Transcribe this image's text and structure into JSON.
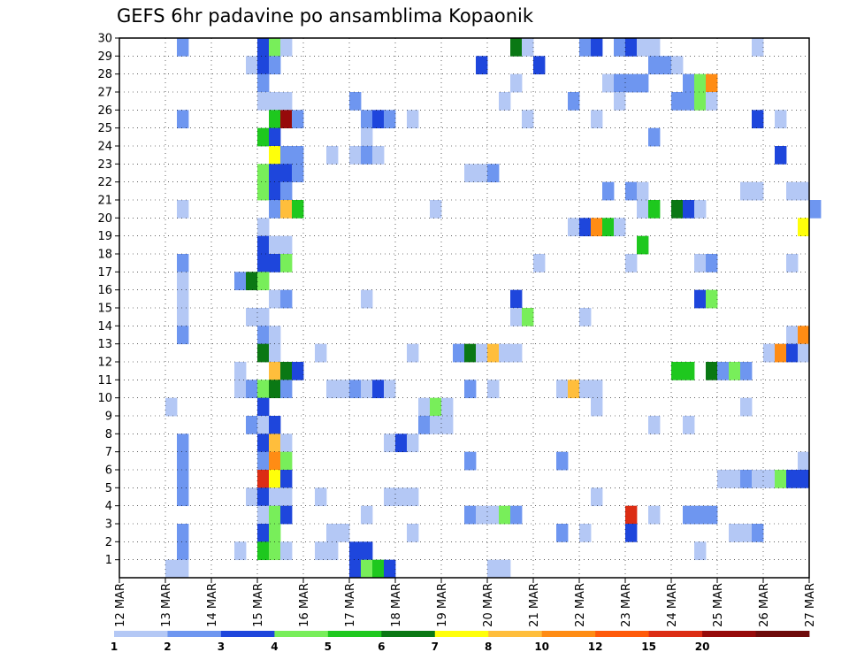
{
  "chart_data": {
    "type": "heatmap",
    "title": "GEFS 6hr padavine po ansamblima Kopaonik",
    "xlabel": "",
    "ylabel": "",
    "x_tick_labels": [
      "12 MAR",
      "13 MAR",
      "14 MAR",
      "15 MAR",
      "16 MAR",
      "17 MAR",
      "18 MAR",
      "19 MAR",
      "20 MAR",
      "21 MAR",
      "22 MAR",
      "23 MAR",
      "24 MAR",
      "25 MAR",
      "26 MAR",
      "27 MAR"
    ],
    "y_tick_labels": [
      "1",
      "2",
      "3",
      "4",
      "5",
      "6",
      "7",
      "8",
      "9",
      "10",
      "11",
      "12",
      "13",
      "14",
      "15",
      "16",
      "17",
      "18",
      "19",
      "20",
      "21",
      "22",
      "23",
      "24",
      "25",
      "26",
      "27",
      "28",
      "29",
      "30"
    ],
    "x_range_days": [
      12,
      27
    ],
    "y_range": [
      0,
      30
    ],
    "grid": true,
    "legend": {
      "position": "bottom",
      "levels": [
        "1",
        "2",
        "3",
        "4",
        "5",
        "6",
        "7",
        "8",
        "10",
        "12",
        "15",
        "20"
      ],
      "colors": [
        "#b4c8f5",
        "#6e96f0",
        "#1e46dc",
        "#78ee5a",
        "#1ec81e",
        "#0a7814",
        "#ffff0a",
        "#ffbe3c",
        "#ff8c14",
        "#ff5a0a",
        "#dc2d14",
        "#960a0a",
        "#6e0a0a"
      ]
    },
    "cell_value_units": "mm, color class index (1 = 1-2, 2 = 2-3, 3 = 3-4, 4 = 4-5, 5 = 5-6, 6 = 6-7, 7 = 7-8, 8 = 8-10, 9 = 10-12, 10 = 12-15, 11 = 15-20, 12 = >20)",
    "cells": [
      {
        "member": 30,
        "entries": [
          [
            13.25,
            2
          ],
          [
            15.0,
            3
          ],
          [
            15.25,
            4
          ],
          [
            15.5,
            1
          ],
          [
            20.5,
            6
          ],
          [
            20.75,
            1
          ],
          [
            22.0,
            2
          ],
          [
            22.25,
            3
          ],
          [
            22.75,
            2
          ],
          [
            23.0,
            3
          ],
          [
            23.25,
            1
          ],
          [
            23.5,
            1
          ],
          [
            25.75,
            1
          ]
        ]
      },
      {
        "member": 29,
        "entries": [
          [
            14.75,
            1
          ],
          [
            15.0,
            3
          ],
          [
            15.25,
            2
          ],
          [
            19.75,
            3
          ],
          [
            21.0,
            3
          ],
          [
            23.5,
            2
          ],
          [
            23.75,
            2
          ],
          [
            24.0,
            1
          ]
        ]
      },
      {
        "member": 28,
        "entries": [
          [
            15.0,
            2
          ],
          [
            20.5,
            1
          ],
          [
            22.5,
            1
          ],
          [
            22.75,
            2
          ],
          [
            23.0,
            2
          ],
          [
            23.25,
            2
          ],
          [
            24.25,
            2
          ],
          [
            24.5,
            4
          ],
          [
            24.75,
            9
          ]
        ]
      },
      {
        "member": 27,
        "entries": [
          [
            15.0,
            1
          ],
          [
            15.25,
            1
          ],
          [
            15.5,
            1
          ],
          [
            17.0,
            2
          ],
          [
            20.25,
            1
          ],
          [
            21.75,
            2
          ],
          [
            22.75,
            1
          ],
          [
            24.0,
            2
          ],
          [
            24.25,
            2
          ],
          [
            24.5,
            4
          ],
          [
            24.75,
            1
          ]
        ]
      },
      {
        "member": 26,
        "entries": [
          [
            13.25,
            2
          ],
          [
            15.25,
            5
          ],
          [
            15.5,
            12
          ],
          [
            15.75,
            2
          ],
          [
            17.25,
            2
          ],
          [
            17.5,
            3
          ],
          [
            17.75,
            2
          ],
          [
            18.25,
            1
          ],
          [
            20.75,
            1
          ],
          [
            22.25,
            1
          ],
          [
            25.75,
            3
          ],
          [
            26.25,
            1
          ]
        ]
      },
      {
        "member": 25,
        "entries": [
          [
            15.0,
            5
          ],
          [
            15.25,
            3
          ],
          [
            17.25,
            1
          ],
          [
            23.5,
            2
          ]
        ]
      },
      {
        "member": 24,
        "entries": [
          [
            15.25,
            7
          ],
          [
            15.5,
            2
          ],
          [
            15.75,
            2
          ],
          [
            16.5,
            1
          ],
          [
            17.0,
            1
          ],
          [
            17.25,
            2
          ],
          [
            17.5,
            1
          ],
          [
            26.25,
            3
          ]
        ]
      },
      {
        "member": 23,
        "entries": [
          [
            15.0,
            4
          ],
          [
            15.25,
            3
          ],
          [
            15.5,
            3
          ],
          [
            15.75,
            2
          ],
          [
            19.5,
            1
          ],
          [
            19.75,
            1
          ],
          [
            20.0,
            2
          ]
        ]
      },
      {
        "member": 22,
        "entries": [
          [
            15.0,
            4
          ],
          [
            15.25,
            3
          ],
          [
            15.5,
            2
          ],
          [
            22.5,
            2
          ],
          [
            23.0,
            2
          ],
          [
            23.25,
            1
          ],
          [
            25.5,
            1
          ],
          [
            25.75,
            1
          ],
          [
            26.5,
            1
          ],
          [
            26.75,
            1
          ]
        ]
      },
      {
        "member": 21,
        "entries": [
          [
            13.25,
            1
          ],
          [
            15.25,
            2
          ],
          [
            15.5,
            8
          ],
          [
            15.75,
            5
          ],
          [
            18.75,
            1
          ],
          [
            23.25,
            1
          ],
          [
            23.5,
            5
          ],
          [
            24.0,
            6
          ],
          [
            24.25,
            3
          ],
          [
            24.5,
            1
          ],
          [
            27.0,
            2
          ]
        ]
      },
      {
        "member": 20,
        "entries": [
          [
            15.0,
            1
          ],
          [
            21.75,
            1
          ],
          [
            22.0,
            3
          ],
          [
            22.25,
            9
          ],
          [
            22.5,
            5
          ],
          [
            22.75,
            1
          ],
          [
            26.75,
            7
          ]
        ]
      },
      {
        "member": 19,
        "entries": [
          [
            15.0,
            3
          ],
          [
            15.25,
            1
          ],
          [
            15.5,
            1
          ],
          [
            23.25,
            5
          ]
        ]
      },
      {
        "member": 18,
        "entries": [
          [
            13.25,
            2
          ],
          [
            15.0,
            3
          ],
          [
            15.25,
            3
          ],
          [
            15.5,
            4
          ],
          [
            21.0,
            1
          ],
          [
            23.0,
            1
          ],
          [
            24.5,
            1
          ],
          [
            24.75,
            2
          ],
          [
            26.5,
            1
          ]
        ]
      },
      {
        "member": 17,
        "entries": [
          [
            13.25,
            1
          ],
          [
            14.5,
            2
          ],
          [
            14.75,
            6
          ],
          [
            15.0,
            4
          ]
        ]
      },
      {
        "member": 16,
        "entries": [
          [
            13.25,
            1
          ],
          [
            15.25,
            1
          ],
          [
            15.5,
            2
          ],
          [
            17.25,
            1
          ],
          [
            20.5,
            3
          ],
          [
            24.5,
            3
          ],
          [
            24.75,
            4
          ]
        ]
      },
      {
        "member": 15,
        "entries": [
          [
            13.25,
            1
          ],
          [
            14.75,
            1
          ],
          [
            15.0,
            1
          ],
          [
            20.5,
            1
          ],
          [
            20.75,
            4
          ],
          [
            22.0,
            1
          ]
        ]
      },
      {
        "member": 14,
        "entries": [
          [
            13.25,
            2
          ],
          [
            15.0,
            2
          ],
          [
            15.25,
            1
          ],
          [
            26.5,
            1
          ],
          [
            26.75,
            9
          ]
        ]
      },
      {
        "member": 13,
        "entries": [
          [
            15.0,
            6
          ],
          [
            15.25,
            1
          ],
          [
            16.25,
            1
          ],
          [
            18.25,
            1
          ],
          [
            19.25,
            2
          ],
          [
            19.5,
            6
          ],
          [
            19.75,
            1
          ],
          [
            20.0,
            8
          ],
          [
            20.25,
            1
          ],
          [
            20.5,
            1
          ],
          [
            26.0,
            1
          ],
          [
            26.25,
            9
          ],
          [
            26.5,
            3
          ],
          [
            26.75,
            1
          ]
        ]
      },
      {
        "member": 12,
        "entries": [
          [
            14.5,
            1
          ],
          [
            15.25,
            8
          ],
          [
            15.5,
            6
          ],
          [
            15.75,
            3
          ],
          [
            24.0,
            5
          ],
          [
            24.25,
            5
          ],
          [
            24.75,
            6
          ],
          [
            25.0,
            2
          ],
          [
            25.25,
            4
          ],
          [
            25.5,
            2
          ]
        ]
      },
      {
        "member": 11,
        "entries": [
          [
            14.5,
            1
          ],
          [
            14.75,
            2
          ],
          [
            15.0,
            4
          ],
          [
            15.25,
            6
          ],
          [
            15.5,
            2
          ],
          [
            16.5,
            1
          ],
          [
            16.75,
            1
          ],
          [
            17.0,
            2
          ],
          [
            17.25,
            1
          ],
          [
            17.5,
            3
          ],
          [
            17.75,
            1
          ],
          [
            19.5,
            2
          ],
          [
            20.0,
            1
          ],
          [
            21.5,
            1
          ],
          [
            21.75,
            8
          ],
          [
            22.0,
            1
          ],
          [
            22.25,
            1
          ]
        ]
      },
      {
        "member": 10,
        "entries": [
          [
            13.0,
            1
          ],
          [
            15.0,
            3
          ],
          [
            18.5,
            1
          ],
          [
            18.75,
            4
          ],
          [
            19.0,
            1
          ],
          [
            22.25,
            1
          ],
          [
            25.5,
            1
          ]
        ]
      },
      {
        "member": 9,
        "entries": [
          [
            14.75,
            2
          ],
          [
            15.0,
            1
          ],
          [
            15.25,
            3
          ],
          [
            18.5,
            2
          ],
          [
            18.75,
            1
          ],
          [
            19.0,
            1
          ],
          [
            23.5,
            1
          ],
          [
            24.25,
            1
          ]
        ]
      },
      {
        "member": 8,
        "entries": [
          [
            13.25,
            2
          ],
          [
            15.0,
            3
          ],
          [
            15.25,
            8
          ],
          [
            15.5,
            1
          ],
          [
            17.75,
            1
          ],
          [
            18.0,
            3
          ],
          [
            18.25,
            1
          ]
        ]
      },
      {
        "member": 7,
        "entries": [
          [
            13.25,
            2
          ],
          [
            15.0,
            2
          ],
          [
            15.25,
            9
          ],
          [
            15.5,
            4
          ],
          [
            19.5,
            2
          ],
          [
            21.5,
            2
          ],
          [
            26.75,
            1
          ]
        ]
      },
      {
        "member": 6,
        "entries": [
          [
            13.25,
            2
          ],
          [
            15.0,
            11
          ],
          [
            15.25,
            7
          ],
          [
            15.5,
            3
          ],
          [
            25.0,
            1
          ],
          [
            25.25,
            1
          ],
          [
            25.5,
            2
          ],
          [
            25.75,
            1
          ],
          [
            26.0,
            1
          ],
          [
            26.25,
            4
          ],
          [
            26.5,
            3
          ],
          [
            26.75,
            3
          ]
        ]
      },
      {
        "member": 5,
        "entries": [
          [
            13.25,
            2
          ],
          [
            14.75,
            1
          ],
          [
            15.0,
            3
          ],
          [
            15.25,
            1
          ],
          [
            15.5,
            1
          ],
          [
            16.25,
            1
          ],
          [
            17.75,
            1
          ],
          [
            18.0,
            1
          ],
          [
            18.25,
            1
          ],
          [
            22.25,
            1
          ]
        ]
      },
      {
        "member": 4,
        "entries": [
          [
            15.0,
            1
          ],
          [
            15.25,
            4
          ],
          [
            15.5,
            3
          ],
          [
            17.25,
            1
          ],
          [
            19.5,
            2
          ],
          [
            19.75,
            1
          ],
          [
            20.0,
            1
          ],
          [
            20.25,
            4
          ],
          [
            20.5,
            2
          ],
          [
            23.0,
            11
          ],
          [
            23.5,
            1
          ],
          [
            24.25,
            2
          ],
          [
            24.5,
            2
          ],
          [
            24.75,
            2
          ]
        ]
      },
      {
        "member": 3,
        "entries": [
          [
            13.25,
            2
          ],
          [
            15.0,
            3
          ],
          [
            15.25,
            4
          ],
          [
            16.5,
            1
          ],
          [
            16.75,
            1
          ],
          [
            18.25,
            1
          ],
          [
            21.5,
            2
          ],
          [
            22.0,
            1
          ],
          [
            23.0,
            3
          ],
          [
            25.25,
            1
          ],
          [
            25.5,
            1
          ],
          [
            25.75,
            2
          ]
        ]
      },
      {
        "member": 2,
        "entries": [
          [
            13.25,
            2
          ],
          [
            14.5,
            1
          ],
          [
            15.0,
            5
          ],
          [
            15.25,
            4
          ],
          [
            15.5,
            1
          ],
          [
            16.25,
            1
          ],
          [
            16.5,
            1
          ],
          [
            17.0,
            3
          ],
          [
            17.25,
            3
          ],
          [
            24.5,
            1
          ]
        ]
      },
      {
        "member": 1,
        "entries": [
          [
            13.0,
            1
          ],
          [
            13.25,
            1
          ],
          [
            17.0,
            3
          ],
          [
            17.25,
            4
          ],
          [
            17.5,
            5
          ],
          [
            17.75,
            3
          ],
          [
            20.0,
            1
          ],
          [
            20.25,
            1
          ]
        ]
      }
    ]
  }
}
